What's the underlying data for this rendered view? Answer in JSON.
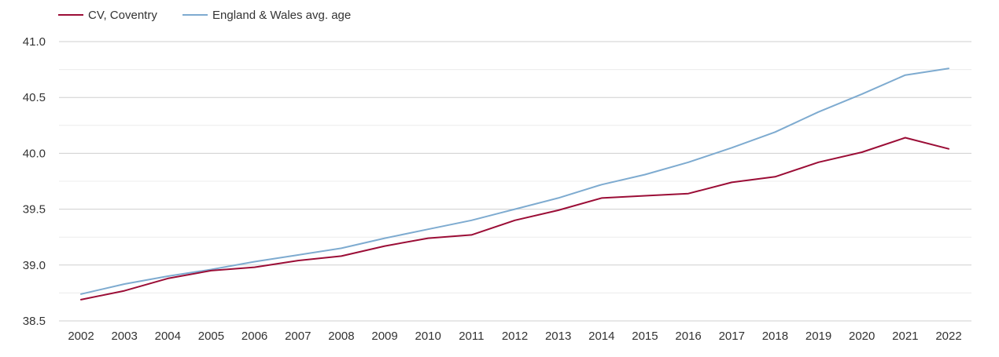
{
  "chart_data": {
    "type": "line",
    "title": "",
    "xlabel": "",
    "ylabel": "",
    "categories": [
      "2002",
      "2003",
      "2004",
      "2005",
      "2006",
      "2007",
      "2008",
      "2009",
      "2010",
      "2011",
      "2012",
      "2013",
      "2014",
      "2015",
      "2016",
      "2017",
      "2018",
      "2019",
      "2020",
      "2021",
      "2022"
    ],
    "y_ticks": [
      "41.0",
      "40.5",
      "40.0",
      "39.5",
      "39.0",
      "38.5"
    ],
    "y_tick_values": [
      41.0,
      40.5,
      40.0,
      39.5,
      39.0,
      38.5
    ],
    "ylim": [
      38.5,
      41.0
    ],
    "grid": true,
    "legend_position": "top-left",
    "series": [
      {
        "name": "CV, Coventry",
        "color": "#9b0d36",
        "values": [
          38.69,
          38.77,
          38.88,
          38.95,
          38.98,
          39.04,
          39.08,
          39.17,
          39.24,
          39.27,
          39.4,
          39.49,
          39.6,
          39.62,
          39.64,
          39.74,
          39.79,
          39.92,
          40.01,
          40.14,
          40.04
        ]
      },
      {
        "name": "England & Wales avg. age",
        "color": "#7eabd0",
        "values": [
          38.74,
          38.83,
          38.9,
          38.96,
          39.03,
          39.09,
          39.15,
          39.24,
          39.32,
          39.4,
          39.5,
          39.6,
          39.72,
          39.81,
          39.92,
          40.05,
          40.19,
          40.37,
          40.53,
          40.7,
          40.76
        ]
      }
    ]
  }
}
